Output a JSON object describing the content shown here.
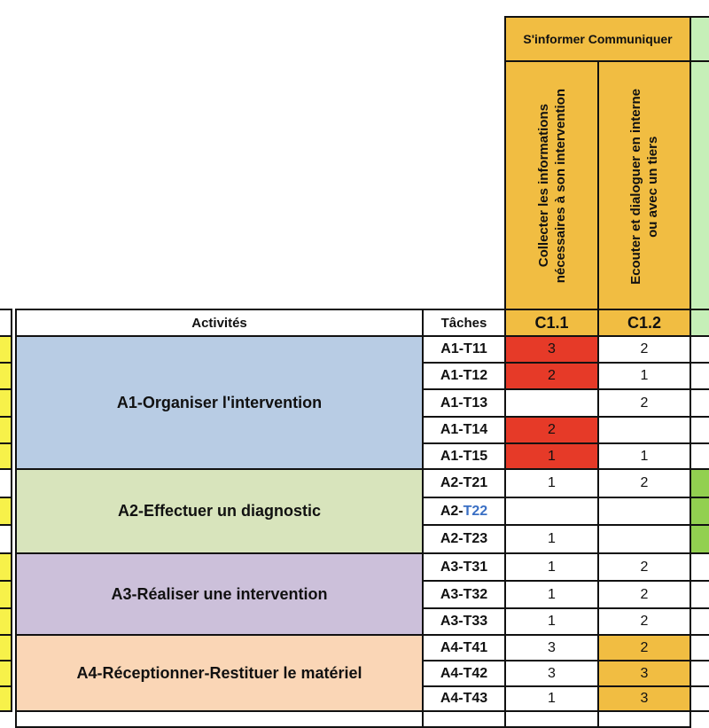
{
  "header": {
    "group_title": "S'informer Communiquer",
    "competences": [
      {
        "code": "C1.1",
        "label_line1": "Collecter les informations",
        "label_line2": "nécessaires à son intervention"
      },
      {
        "code": "C1.2",
        "label_line1": "Ecouter et dialoguer en interne",
        "label_line2": "ou avec un tiers"
      }
    ],
    "col_activites": "Activités",
    "col_taches": "Tâches"
  },
  "colors": {
    "orange": "#f1bd42",
    "red": "#e63a28",
    "blue": "#b8cce4",
    "green": "#d8e4bc",
    "purple": "#ccc0da",
    "peach": "#fad6b6",
    "yellow": "#f7f14a",
    "light_green": "#c6efb8",
    "mid_green": "#92d050",
    "link_blue": "#3a6fc4"
  },
  "activities": [
    {
      "label": "A1-Organiser l'intervention",
      "color": "#b8cce4"
    },
    {
      "label": "A2-Effectuer un diagnostic",
      "color": "#d8e4bc"
    },
    {
      "label": "A3-Réaliser une intervention",
      "color": "#ccc0da"
    },
    {
      "label": "A4-Réceptionner-Restituer le matériel",
      "color": "#fad6b6"
    }
  ],
  "tasks": [
    {
      "prefix": "A1-",
      "code": "T11",
      "c11": "3",
      "c11_fill": "red",
      "c12": "2",
      "c12_fill": "",
      "edge": "yellow"
    },
    {
      "prefix": "A1-",
      "code": "T12",
      "c11": "2",
      "c11_fill": "red",
      "c12": "1",
      "c12_fill": "",
      "edge": "yellow"
    },
    {
      "prefix": "A1-",
      "code": "T13",
      "c11": "",
      "c11_fill": "",
      "c12": "2",
      "c12_fill": "",
      "edge": "yellow"
    },
    {
      "prefix": "A1-",
      "code": "T14",
      "c11": "2",
      "c11_fill": "red",
      "c12": "",
      "c12_fill": "",
      "edge": "yellow"
    },
    {
      "prefix": "A1-",
      "code": "T15",
      "c11": "1",
      "c11_fill": "red",
      "c12": "1",
      "c12_fill": "",
      "edge": "yellow"
    },
    {
      "prefix": "A2-",
      "code": "T21",
      "c11": "1",
      "c11_fill": "",
      "c12": "2",
      "c12_fill": "",
      "edge": "none"
    },
    {
      "prefix": "A2-",
      "code": "T22",
      "c11": "",
      "c11_fill": "",
      "c12": "",
      "c12_fill": "",
      "edge": "yellow",
      "code_link": true
    },
    {
      "prefix": "A2-",
      "code": "T23",
      "c11": "1",
      "c11_fill": "",
      "c12": "",
      "c12_fill": "",
      "edge": "none"
    },
    {
      "prefix": "A3-",
      "code": "T31",
      "c11": "1",
      "c11_fill": "",
      "c12": "2",
      "c12_fill": "",
      "edge": "yellow"
    },
    {
      "prefix": "A3-",
      "code": "T32",
      "c11": "1",
      "c11_fill": "",
      "c12": "2",
      "c12_fill": "",
      "edge": "yellow"
    },
    {
      "prefix": "A3-",
      "code": "T33",
      "c11": "1",
      "c11_fill": "",
      "c12": "2",
      "c12_fill": "",
      "edge": "yellow"
    },
    {
      "prefix": "A4-",
      "code": "T41",
      "c11": "3",
      "c11_fill": "",
      "c12": "2",
      "c12_fill": "orange",
      "edge": "yellow"
    },
    {
      "prefix": "A4-",
      "code": "T42",
      "c11": "3",
      "c11_fill": "",
      "c12": "3",
      "c12_fill": "orange",
      "edge": "yellow"
    },
    {
      "prefix": "A4-",
      "code": "T43",
      "c11": "1",
      "c11_fill": "",
      "c12": "3",
      "c12_fill": "orange",
      "edge": "yellow"
    }
  ]
}
